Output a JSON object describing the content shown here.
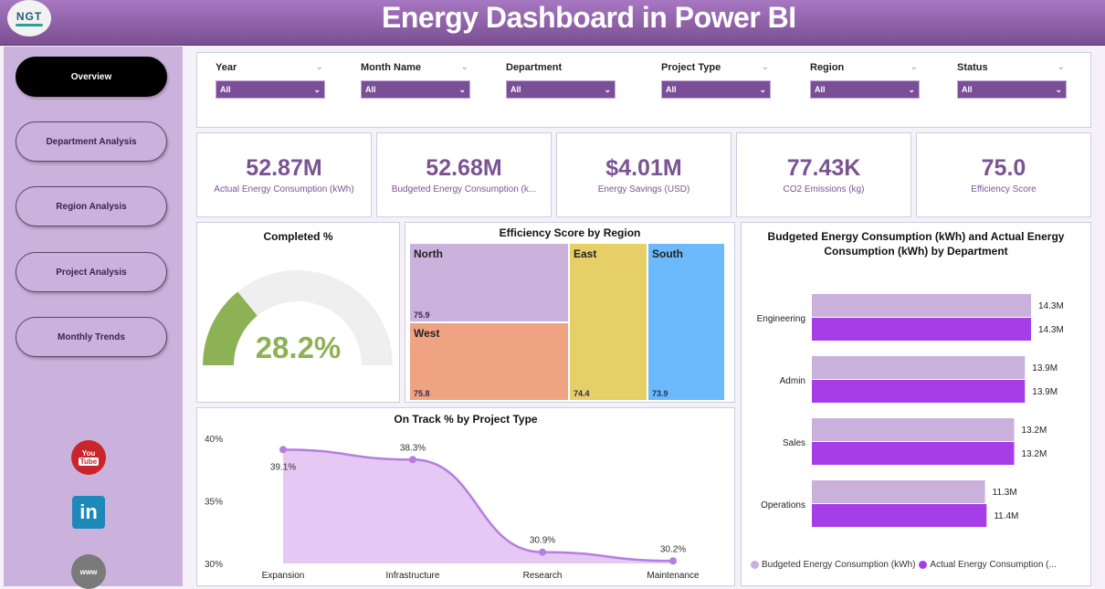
{
  "header": {
    "title": "Energy Dashboard in Power BI",
    "logo_text": "NGT"
  },
  "sidebar": {
    "nav": [
      {
        "label": "Overview",
        "active": true
      },
      {
        "label": "Department Analysis",
        "active": false
      },
      {
        "label": "Region Analysis",
        "active": false
      },
      {
        "label": "Project Analysis",
        "active": false
      },
      {
        "label": "Monthly Trends",
        "active": false
      }
    ],
    "social": {
      "youtube_top": "You",
      "youtube_bottom": "Tube",
      "linkedin": "in",
      "web": "www"
    }
  },
  "filters": [
    {
      "label": "Year",
      "value": "All"
    },
    {
      "label": "Month Name",
      "value": "All"
    },
    {
      "label": "Department",
      "value": "All"
    },
    {
      "label": "Project Type",
      "value": "All"
    },
    {
      "label": "Region",
      "value": "All"
    },
    {
      "label": "Status",
      "value": "All"
    }
  ],
  "kpis": [
    {
      "value": "52.87M",
      "label": "Actual Energy Consumption (kWh)"
    },
    {
      "value": "52.68M",
      "label": "Budgeted Energy Consumption (k..."
    },
    {
      "value": "$4.01M",
      "label": "Energy Savings (USD)"
    },
    {
      "value": "77.43K",
      "label": "CO2 Emissions (kg)"
    },
    {
      "value": "75.0",
      "label": "Efficiency Score"
    }
  ],
  "colors": {
    "accent": "#7b4f98",
    "gauge_fill": "#8db255",
    "gauge_track": "#efefef",
    "budget_bar": "#c9b1db",
    "actual_bar": "#a63ee8",
    "line": "#b67ee0",
    "area": "#e5c9f4"
  },
  "chart_data": [
    {
      "type": "gauge",
      "title": "Completed %",
      "value": 28.2,
      "max": 100,
      "label": "28.2%"
    },
    {
      "type": "treemap",
      "title": "Efficiency Score by Region",
      "items": [
        {
          "name": "North",
          "value": 75.9,
          "label": "75.9",
          "color": "#cbb2dd"
        },
        {
          "name": "West",
          "value": 75.8,
          "label": "75.8",
          "color": "#efa383"
        },
        {
          "name": "East",
          "value": 74.4,
          "label": "74.4",
          "color": "#e6cf66"
        },
        {
          "name": "South",
          "value": 73.9,
          "label": "73.9",
          "color": "#6cb9fb"
        }
      ]
    },
    {
      "type": "bar",
      "orientation": "horizontal",
      "title_line1": "Budgeted Energy Consumption (kWh) and Actual Energy",
      "title_line2": "Consumption (kWh) by Department",
      "categories": [
        "Engineering",
        "Admin",
        "Sales",
        "Operations"
      ],
      "series": [
        {
          "name": "Budgeted Energy Consumption (kWh)",
          "values": [
            14.3,
            13.9,
            13.2,
            11.3
          ],
          "labels": [
            "14.3M",
            "13.9M",
            "13.2M",
            "11.3M"
          ]
        },
        {
          "name": "Actual Energy Consumption (...",
          "values": [
            14.3,
            13.9,
            13.2,
            11.4
          ],
          "labels": [
            "14.3M",
            "13.9M",
            "13.2M",
            "11.4M"
          ]
        }
      ],
      "unit": "M kWh",
      "legend": "bottom"
    },
    {
      "type": "area",
      "title": "On Track % by Project Type",
      "categories": [
        "Expansion",
        "Infrastructure",
        "Research",
        "Maintenance"
      ],
      "values": [
        39.1,
        38.3,
        30.9,
        30.2
      ],
      "labels": [
        "39.1%",
        "38.3%",
        "30.9%",
        "30.2%"
      ],
      "ylim": [
        30,
        40
      ],
      "yticks": [
        "40%",
        "35%",
        "30%"
      ]
    }
  ]
}
